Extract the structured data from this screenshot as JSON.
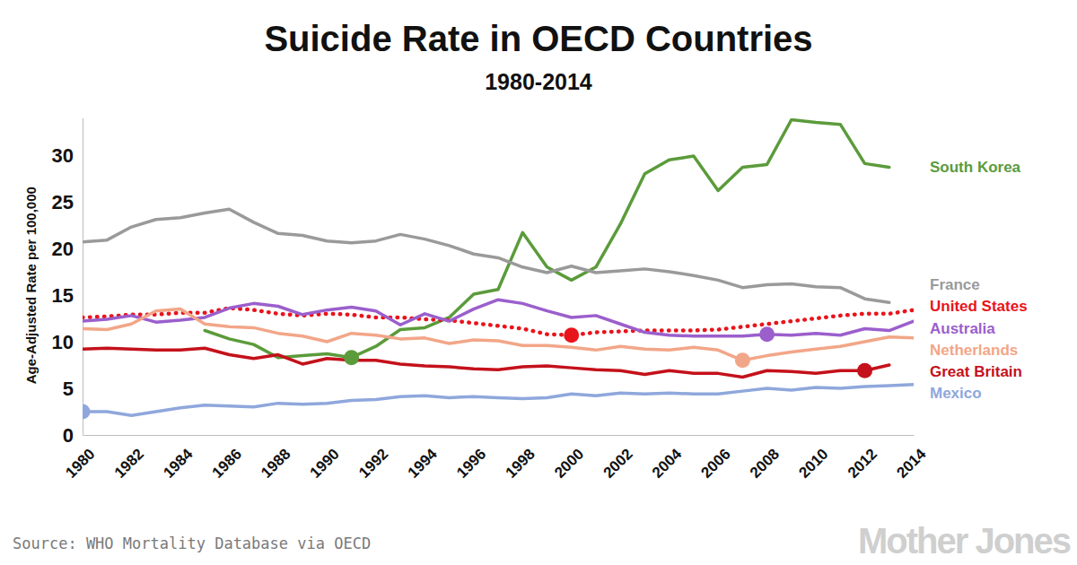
{
  "chart_data": {
    "type": "line",
    "title": "Suicide Rate in OECD Countries",
    "subtitle": "1980-2014",
    "y_label": "Age-Adjusted Rate per 100,000",
    "source": "Source: WHO Mortality Database via OECD",
    "credit": "Mother Jones",
    "x": [
      1980,
      1981,
      1982,
      1983,
      1984,
      1985,
      1986,
      1987,
      1988,
      1989,
      1990,
      1991,
      1992,
      1993,
      1994,
      1995,
      1996,
      1997,
      1998,
      1999,
      2000,
      2001,
      2002,
      2003,
      2004,
      2005,
      2006,
      2007,
      2008,
      2009,
      2010,
      2011,
      2012,
      2013,
      2014
    ],
    "xlim": [
      1980,
      2014
    ],
    "xticks": [
      1980,
      1982,
      1984,
      1986,
      1988,
      1990,
      1992,
      1994,
      1996,
      1998,
      2000,
      2002,
      2004,
      2006,
      2008,
      2010,
      2012,
      2014
    ],
    "ylim": [
      0,
      34
    ],
    "yticks": [
      0,
      5,
      10,
      15,
      20,
      25,
      30
    ],
    "grid": false,
    "legend": "right",
    "series": [
      {
        "name": "South Korea",
        "color": "#5b9b3b",
        "line_style": "solid",
        "marker": "circle",
        "highlight": 1991,
        "values": [
          null,
          null,
          null,
          null,
          null,
          11.2,
          10.3,
          9.7,
          8.3,
          8.5,
          8.7,
          8.3,
          9.5,
          11.3,
          11.5,
          12.6,
          15.1,
          15.6,
          21.7,
          18.0,
          16.6,
          18.0,
          22.6,
          28.0,
          29.5,
          29.9,
          26.2,
          28.7,
          29.0,
          33.8,
          33.5,
          33.3,
          29.1,
          28.7,
          null
        ]
      },
      {
        "name": "France",
        "color": "#9a9a9a",
        "line_style": "solid",
        "values": [
          20.7,
          20.9,
          22.3,
          23.1,
          23.3,
          23.8,
          24.2,
          22.8,
          21.6,
          21.4,
          20.8,
          20.6,
          20.8,
          21.5,
          21.0,
          20.3,
          19.4,
          19.0,
          18.0,
          17.4,
          18.1,
          17.4,
          17.6,
          17.8,
          17.5,
          17.1,
          16.6,
          15.8,
          16.1,
          16.2,
          15.9,
          15.8,
          14.6,
          14.2,
          null
        ]
      },
      {
        "name": "United States",
        "color": "#e8141c",
        "line_style": "dotted",
        "marker": "circle",
        "highlight": 2000,
        "values": [
          12.6,
          12.7,
          12.9,
          12.9,
          13.1,
          13.1,
          13.6,
          13.4,
          13.0,
          12.8,
          13.0,
          12.9,
          12.6,
          12.6,
          12.4,
          12.3,
          12.0,
          11.7,
          11.4,
          10.8,
          10.7,
          11.0,
          11.1,
          11.2,
          11.2,
          11.2,
          11.3,
          11.6,
          11.9,
          12.2,
          12.5,
          12.8,
          13.0,
          13.0,
          13.4
        ]
      },
      {
        "name": "Australia",
        "color": "#9b5fcc",
        "line_style": "solid",
        "marker": "circle",
        "highlight": 2008,
        "values": [
          12.2,
          12.4,
          12.8,
          12.1,
          12.3,
          12.6,
          13.6,
          14.1,
          13.8,
          12.9,
          13.4,
          13.7,
          13.3,
          11.8,
          13.0,
          12.2,
          13.5,
          14.5,
          14.1,
          13.3,
          12.6,
          12.8,
          11.9,
          11.0,
          10.7,
          10.6,
          10.6,
          10.6,
          10.8,
          10.7,
          10.9,
          10.7,
          11.4,
          11.2,
          12.2
        ]
      },
      {
        "name": "Netherlands",
        "color": "#f2a688",
        "line_style": "solid",
        "marker": "circle",
        "highlight": 2007,
        "values": [
          11.4,
          11.3,
          11.9,
          13.3,
          13.5,
          11.9,
          11.6,
          11.5,
          10.9,
          10.6,
          10.0,
          10.9,
          10.7,
          10.3,
          10.4,
          9.8,
          10.2,
          10.1,
          9.6,
          9.6,
          9.4,
          9.1,
          9.5,
          9.2,
          9.1,
          9.4,
          9.1,
          8.0,
          8.5,
          8.9,
          9.2,
          9.5,
          10.0,
          10.5,
          10.4
        ]
      },
      {
        "name": "Great Britain",
        "color": "#c4111b",
        "line_style": "solid",
        "marker": "circle",
        "highlight": 2012,
        "values": [
          9.2,
          9.3,
          9.2,
          9.1,
          9.1,
          9.3,
          8.6,
          8.2,
          8.6,
          7.6,
          8.2,
          8.0,
          8.0,
          7.6,
          7.4,
          7.3,
          7.1,
          7.0,
          7.3,
          7.4,
          7.2,
          7.0,
          6.9,
          6.5,
          6.9,
          6.6,
          6.6,
          6.2,
          6.9,
          6.8,
          6.6,
          6.9,
          6.9,
          7.5,
          null
        ]
      },
      {
        "name": "Mexico",
        "color": "#8fa7dc",
        "line_style": "solid",
        "marker": "circle",
        "highlight": 1980,
        "values": [
          2.5,
          2.5,
          2.1,
          2.5,
          2.9,
          3.2,
          3.1,
          3.0,
          3.4,
          3.3,
          3.4,
          3.7,
          3.8,
          4.1,
          4.2,
          4.0,
          4.1,
          4.0,
          3.9,
          4.0,
          4.4,
          4.2,
          4.5,
          4.4,
          4.5,
          4.4,
          4.4,
          4.7,
          5.0,
          4.8,
          5.1,
          5.0,
          5.2,
          5.3,
          5.4
        ]
      }
    ]
  }
}
